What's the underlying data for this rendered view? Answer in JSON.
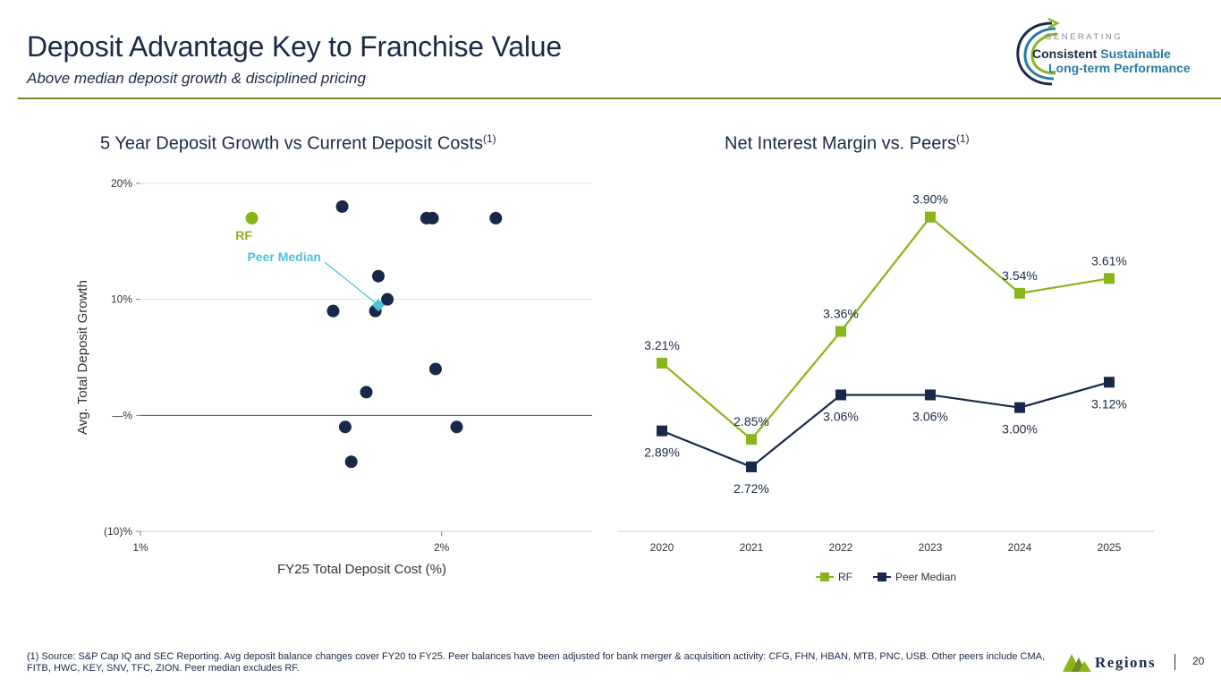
{
  "header": {
    "title": "Deposit Advantage Key to Franchise Value",
    "subtitle": "Above median deposit growth & disciplined pricing"
  },
  "logo": {
    "line_top": "GENERATING",
    "line_mid_a": "Consistent",
    "line_mid_b": "Sustainable",
    "line_bottom": "Long-term Performance"
  },
  "colors": {
    "navy": "#16294a",
    "green": "#8ab51a",
    "teal": "#4ec3d8",
    "rule": "#6e8a23",
    "grid": "#e3e3e3",
    "axis": "#7f7f7f"
  },
  "chart_data": [
    {
      "type": "scatter",
      "title": "5 Year Deposit Growth vs Current Deposit Costs",
      "title_note": "(1)",
      "xlabel": "FY25 Total Deposit Cost (%)",
      "ylabel": "Avg. Total Deposit Growth",
      "xlim": [
        1.0,
        2.5
      ],
      "ylim": [
        -10,
        20
      ],
      "x_ticks": [
        {
          "v": 1.0,
          "label": "1%"
        },
        {
          "v": 2.0,
          "label": "2%"
        }
      ],
      "y_ticks": [
        {
          "v": 20,
          "label": "20%"
        },
        {
          "v": 10,
          "label": "10%"
        },
        {
          "v": 0,
          "label": "—%"
        },
        {
          "v": -10,
          "label": "(10)%"
        }
      ],
      "series": [
        {
          "name": "RF",
          "label": "RF",
          "points": [
            {
              "x": 1.37,
              "y": 17
            }
          ]
        },
        {
          "name": "Peers",
          "points": [
            {
              "x": 1.67,
              "y": 18
            },
            {
              "x": 1.95,
              "y": 17
            },
            {
              "x": 1.97,
              "y": 17
            },
            {
              "x": 2.18,
              "y": 17
            },
            {
              "x": 1.79,
              "y": 12
            },
            {
              "x": 1.82,
              "y": 10
            },
            {
              "x": 1.64,
              "y": 9
            },
            {
              "x": 1.78,
              "y": 9
            },
            {
              "x": 1.98,
              "y": 4
            },
            {
              "x": 1.75,
              "y": 2
            },
            {
              "x": 1.68,
              "y": -1
            },
            {
              "x": 2.05,
              "y": -1
            },
            {
              "x": 1.7,
              "y": -4
            }
          ]
        },
        {
          "name": "Peer Median",
          "label": "Peer Median",
          "points": [
            {
              "x": 1.79,
              "y": 9.5
            }
          ]
        }
      ]
    },
    {
      "type": "line",
      "title": "Net Interest Margin vs. Peers",
      "title_note": "(1)",
      "categories": [
        "2020",
        "2021",
        "2022",
        "2023",
        "2024",
        "2025"
      ],
      "ylim": [
        2.5,
        4.0
      ],
      "series": [
        {
          "name": "RF",
          "values": [
            3.21,
            2.85,
            3.36,
            3.9,
            3.54,
            3.61
          ],
          "labels": [
            "3.21%",
            "2.85%",
            "3.36%",
            "3.90%",
            "3.54%",
            "3.61%"
          ]
        },
        {
          "name": "Peer Median",
          "values": [
            2.89,
            2.72,
            3.06,
            3.06,
            3.0,
            3.12
          ],
          "labels": [
            "2.89%",
            "2.72%",
            "3.06%",
            "3.06%",
            "3.00%",
            "3.12%"
          ]
        }
      ],
      "legend": [
        "RF",
        "Peer Median"
      ]
    }
  ],
  "footer": {
    "footnote": "(1) Source: S&P Cap IQ and SEC Reporting. Avg deposit balance changes cover FY20 to FY25. Peer balances have been adjusted for bank merger & acquisition activity: CFG, FHN, HBAN, MTB, PNC, USB.  Other peers include CMA, FITB, HWC, KEY, SNV, TFC, ZION. Peer median excludes RF.",
    "brand": "Regions",
    "page_number": "20"
  }
}
